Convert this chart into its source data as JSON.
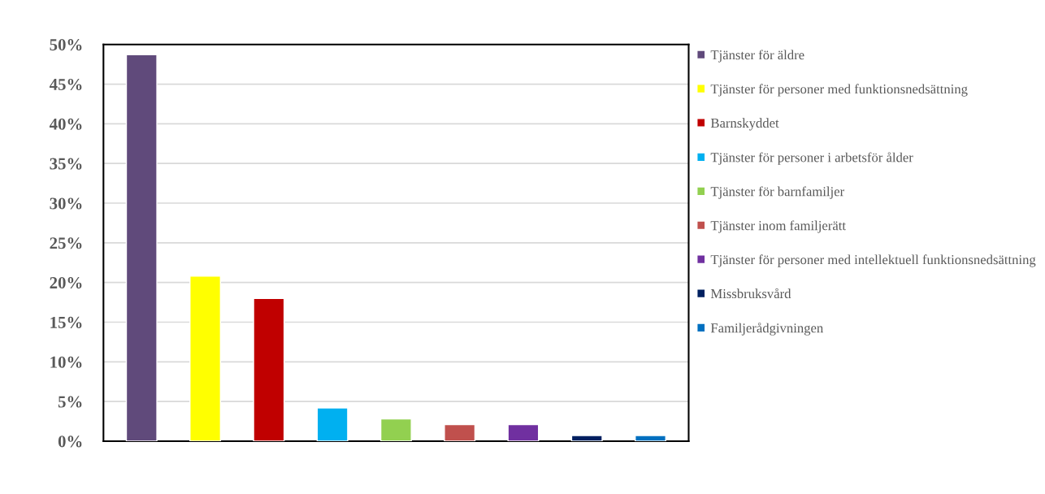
{
  "chart_data": {
    "type": "bar",
    "categories": [
      null,
      null,
      null,
      null,
      null,
      null,
      null,
      null,
      null
    ],
    "series": [
      {
        "name": "Tjänster för äldre",
        "color": "#604a7b",
        "values": [
          48.7,
          null,
          null,
          null,
          null,
          null,
          null,
          null,
          null
        ]
      },
      {
        "name": "Tjänster för personer med funktionsnedsättning",
        "color": "#ffff00",
        "values": [
          null,
          20.8,
          null,
          null,
          null,
          null,
          null,
          null,
          null
        ]
      },
      {
        "name": "Barnskyddet",
        "color": "#c00000",
        "values": [
          null,
          null,
          18.0,
          null,
          null,
          null,
          null,
          null,
          null
        ]
      },
      {
        "name": "Tjänster för personer i arbetsför ålder",
        "color": "#00b0f0",
        "values": [
          null,
          null,
          null,
          4.2,
          null,
          null,
          null,
          null,
          null
        ]
      },
      {
        "name": "Tjänster för barnfamiljer",
        "color": "#92d050",
        "values": [
          null,
          null,
          null,
          null,
          2.8,
          null,
          null,
          null,
          null
        ]
      },
      {
        "name": "Tjänster inom familjerätt",
        "color": "#c0504d",
        "values": [
          null,
          null,
          null,
          null,
          null,
          2.1,
          null,
          null,
          null
        ]
      },
      {
        "name": "Tjänster för personer med intellektuell funktionsnedsättning",
        "color": "#7030a0",
        "values": [
          null,
          null,
          null,
          null,
          null,
          null,
          2.1,
          null,
          null
        ]
      },
      {
        "name": "Missbruksvård",
        "color": "#002060",
        "values": [
          null,
          null,
          null,
          null,
          null,
          null,
          null,
          0.7,
          null
        ]
      },
      {
        "name": "Familjerådgivningen",
        "color": "#0070c0",
        "values": [
          null,
          null,
          null,
          null,
          null,
          null,
          null,
          null,
          0.7
        ]
      }
    ],
    "ylim": [
      0,
      50
    ],
    "yticks": [
      {
        "value": 0,
        "label": "0%"
      },
      {
        "value": 5,
        "label": "5%"
      },
      {
        "value": 10,
        "label": "10%"
      },
      {
        "value": 15,
        "label": "15%"
      },
      {
        "value": 20,
        "label": "20%"
      },
      {
        "value": 25,
        "label": "25%"
      },
      {
        "value": 30,
        "label": "30%"
      },
      {
        "value": 35,
        "label": "35%"
      },
      {
        "value": 40,
        "label": "40%"
      },
      {
        "value": 45,
        "label": "45%"
      },
      {
        "value": 50,
        "label": "50%"
      }
    ],
    "grid": "y",
    "legend": "right",
    "tick_labels": "y"
  }
}
